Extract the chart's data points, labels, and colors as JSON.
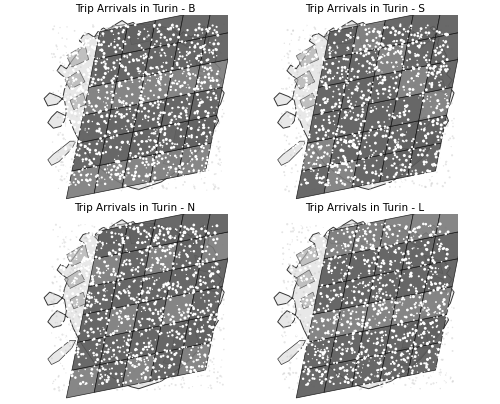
{
  "titles": [
    "Trip Arrivals in Turin - B",
    "Trip Arrivals in Turin - S",
    "Trip Arrivals in Turin - N",
    "Trip Arrivals in Turin - L"
  ],
  "background_color": "#ffffff",
  "dark_zone_color": "#595959",
  "medium_zone_color": "#7a7a7a",
  "outline_color": "#111111",
  "boundary_color": "#333333",
  "title_fontsize": 7.5,
  "figsize": [
    5.0,
    4.04
  ],
  "dpi": 100,
  "subplot_rows": 2,
  "subplot_cols": 2
}
